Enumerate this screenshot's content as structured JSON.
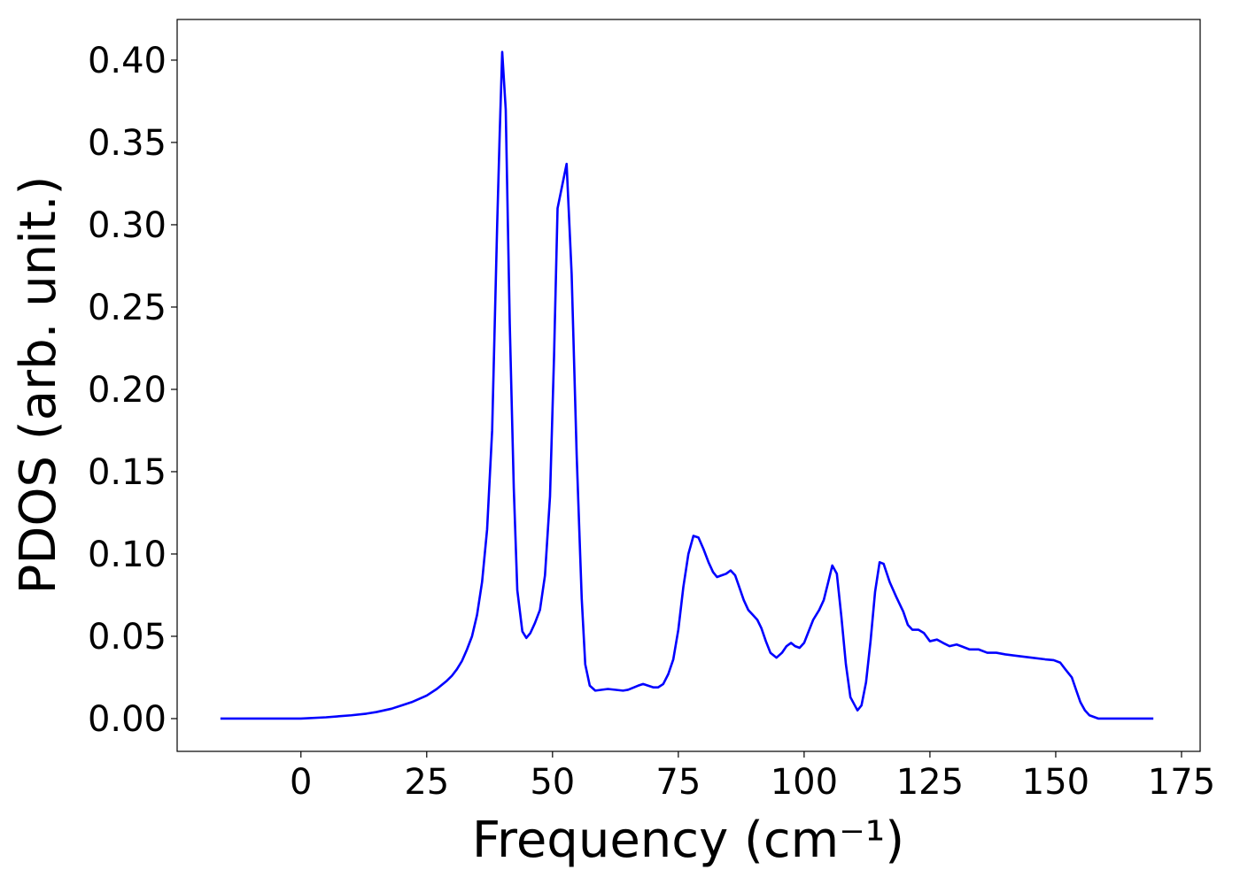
{
  "chart_data": {
    "type": "line",
    "xlabel": "Frequency (cm⁻¹)",
    "ylabel": "PDOS (arb. unit.)",
    "xlim": [
      -24.6,
      178.7
    ],
    "ylim": [
      -0.0199,
      0.4247
    ],
    "xticks": [
      0,
      25,
      50,
      75,
      100,
      125,
      150,
      175
    ],
    "yticks": [
      {
        "value": 0,
        "label": "0.00"
      },
      {
        "value": 0.05,
        "label": "0.05"
      },
      {
        "value": 0.1,
        "label": "0.10"
      },
      {
        "value": 0.15,
        "label": "0.15"
      },
      {
        "value": 0.2,
        "label": "0.20"
      },
      {
        "value": 0.25,
        "label": "0.25"
      },
      {
        "value": 0.3,
        "label": "0.30"
      },
      {
        "value": 0.35,
        "label": "0.35"
      },
      {
        "value": 0.4,
        "label": "0.40"
      }
    ],
    "grid": false,
    "x": [
      -16,
      -10,
      -5,
      0,
      5,
      10,
      13,
      15,
      18,
      20,
      22,
      25,
      27,
      29,
      30,
      31,
      32,
      33,
      34,
      35,
      36,
      37,
      38,
      39,
      39.5,
      40,
      40.7,
      41.5,
      42.3,
      43,
      44,
      44.8,
      45.6,
      46.5,
      47.5,
      48.5,
      49.5,
      50.3,
      51,
      52.8,
      53.8,
      54.8,
      55.8,
      56.5,
      57.4,
      58.5,
      61,
      64,
      65,
      67,
      68,
      70,
      71,
      72,
      73,
      74,
      75,
      76,
      77,
      78,
      79,
      80,
      81,
      81.9,
      82.7,
      83.6,
      84.5,
      85.4,
      86.3,
      87.1,
      88,
      88.9,
      89.8,
      90.7,
      91.5,
      92.4,
      93.3,
      94.5,
      95.6,
      96.5,
      97.4,
      98.2,
      99.1,
      100,
      100.9,
      101.8,
      103,
      103.9,
      104.8,
      105.6,
      106.5,
      107.4,
      108.3,
      109.2,
      110.6,
      111.4,
      112.3,
      113.2,
      114.1,
      115,
      115.8,
      117,
      118.3,
      119.7,
      120.6,
      121.5,
      122.7,
      123.8,
      125,
      126.4,
      127.6,
      128.9,
      130.3,
      131.2,
      132.9,
      134.7,
      136.4,
      138.2,
      140,
      142.6,
      145.3,
      147.9,
      149.6,
      150.9,
      151.9,
      153.2,
      154.1,
      154.9,
      155.8,
      156.7,
      158.5,
      169.4
    ],
    "series": [
      {
        "name": "PDOS",
        "color": "#0000ff",
        "values": [
          0,
          0,
          0,
          0,
          0.0008,
          0.002,
          0.003,
          0.004,
          0.006,
          0.008,
          0.01,
          0.014,
          0.018,
          0.023,
          0.026,
          0.03,
          0.035,
          0.042,
          0.05,
          0.063,
          0.083,
          0.115,
          0.175,
          0.3,
          0.355,
          0.405,
          0.37,
          0.24,
          0.14,
          0.078,
          0.053,
          0.049,
          0.052,
          0.058,
          0.066,
          0.087,
          0.135,
          0.22,
          0.31,
          0.337,
          0.27,
          0.16,
          0.073,
          0.033,
          0.02,
          0.017,
          0.018,
          0.017,
          0.0175,
          0.02,
          0.021,
          0.019,
          0.019,
          0.021,
          0.027,
          0.036,
          0.054,
          0.08,
          0.1,
          0.111,
          0.11,
          0.103,
          0.095,
          0.089,
          0.086,
          0.087,
          0.088,
          0.09,
          0.087,
          0.08,
          0.072,
          0.066,
          0.063,
          0.06,
          0.055,
          0.047,
          0.04,
          0.037,
          0.04,
          0.044,
          0.046,
          0.044,
          0.043,
          0.046,
          0.053,
          0.06,
          0.066,
          0.072,
          0.083,
          0.093,
          0.088,
          0.062,
          0.033,
          0.013,
          0.005,
          0.008,
          0.022,
          0.047,
          0.077,
          0.095,
          0.094,
          0.083,
          0.074,
          0.065,
          0.057,
          0.054,
          0.054,
          0.052,
          0.047,
          0.048,
          0.046,
          0.044,
          0.045,
          0.044,
          0.042,
          0.042,
          0.04,
          0.04,
          0.039,
          0.038,
          0.037,
          0.036,
          0.0355,
          0.034,
          0.03,
          0.025,
          0.017,
          0.01,
          0.005,
          0.002,
          0,
          0
        ]
      }
    ]
  }
}
